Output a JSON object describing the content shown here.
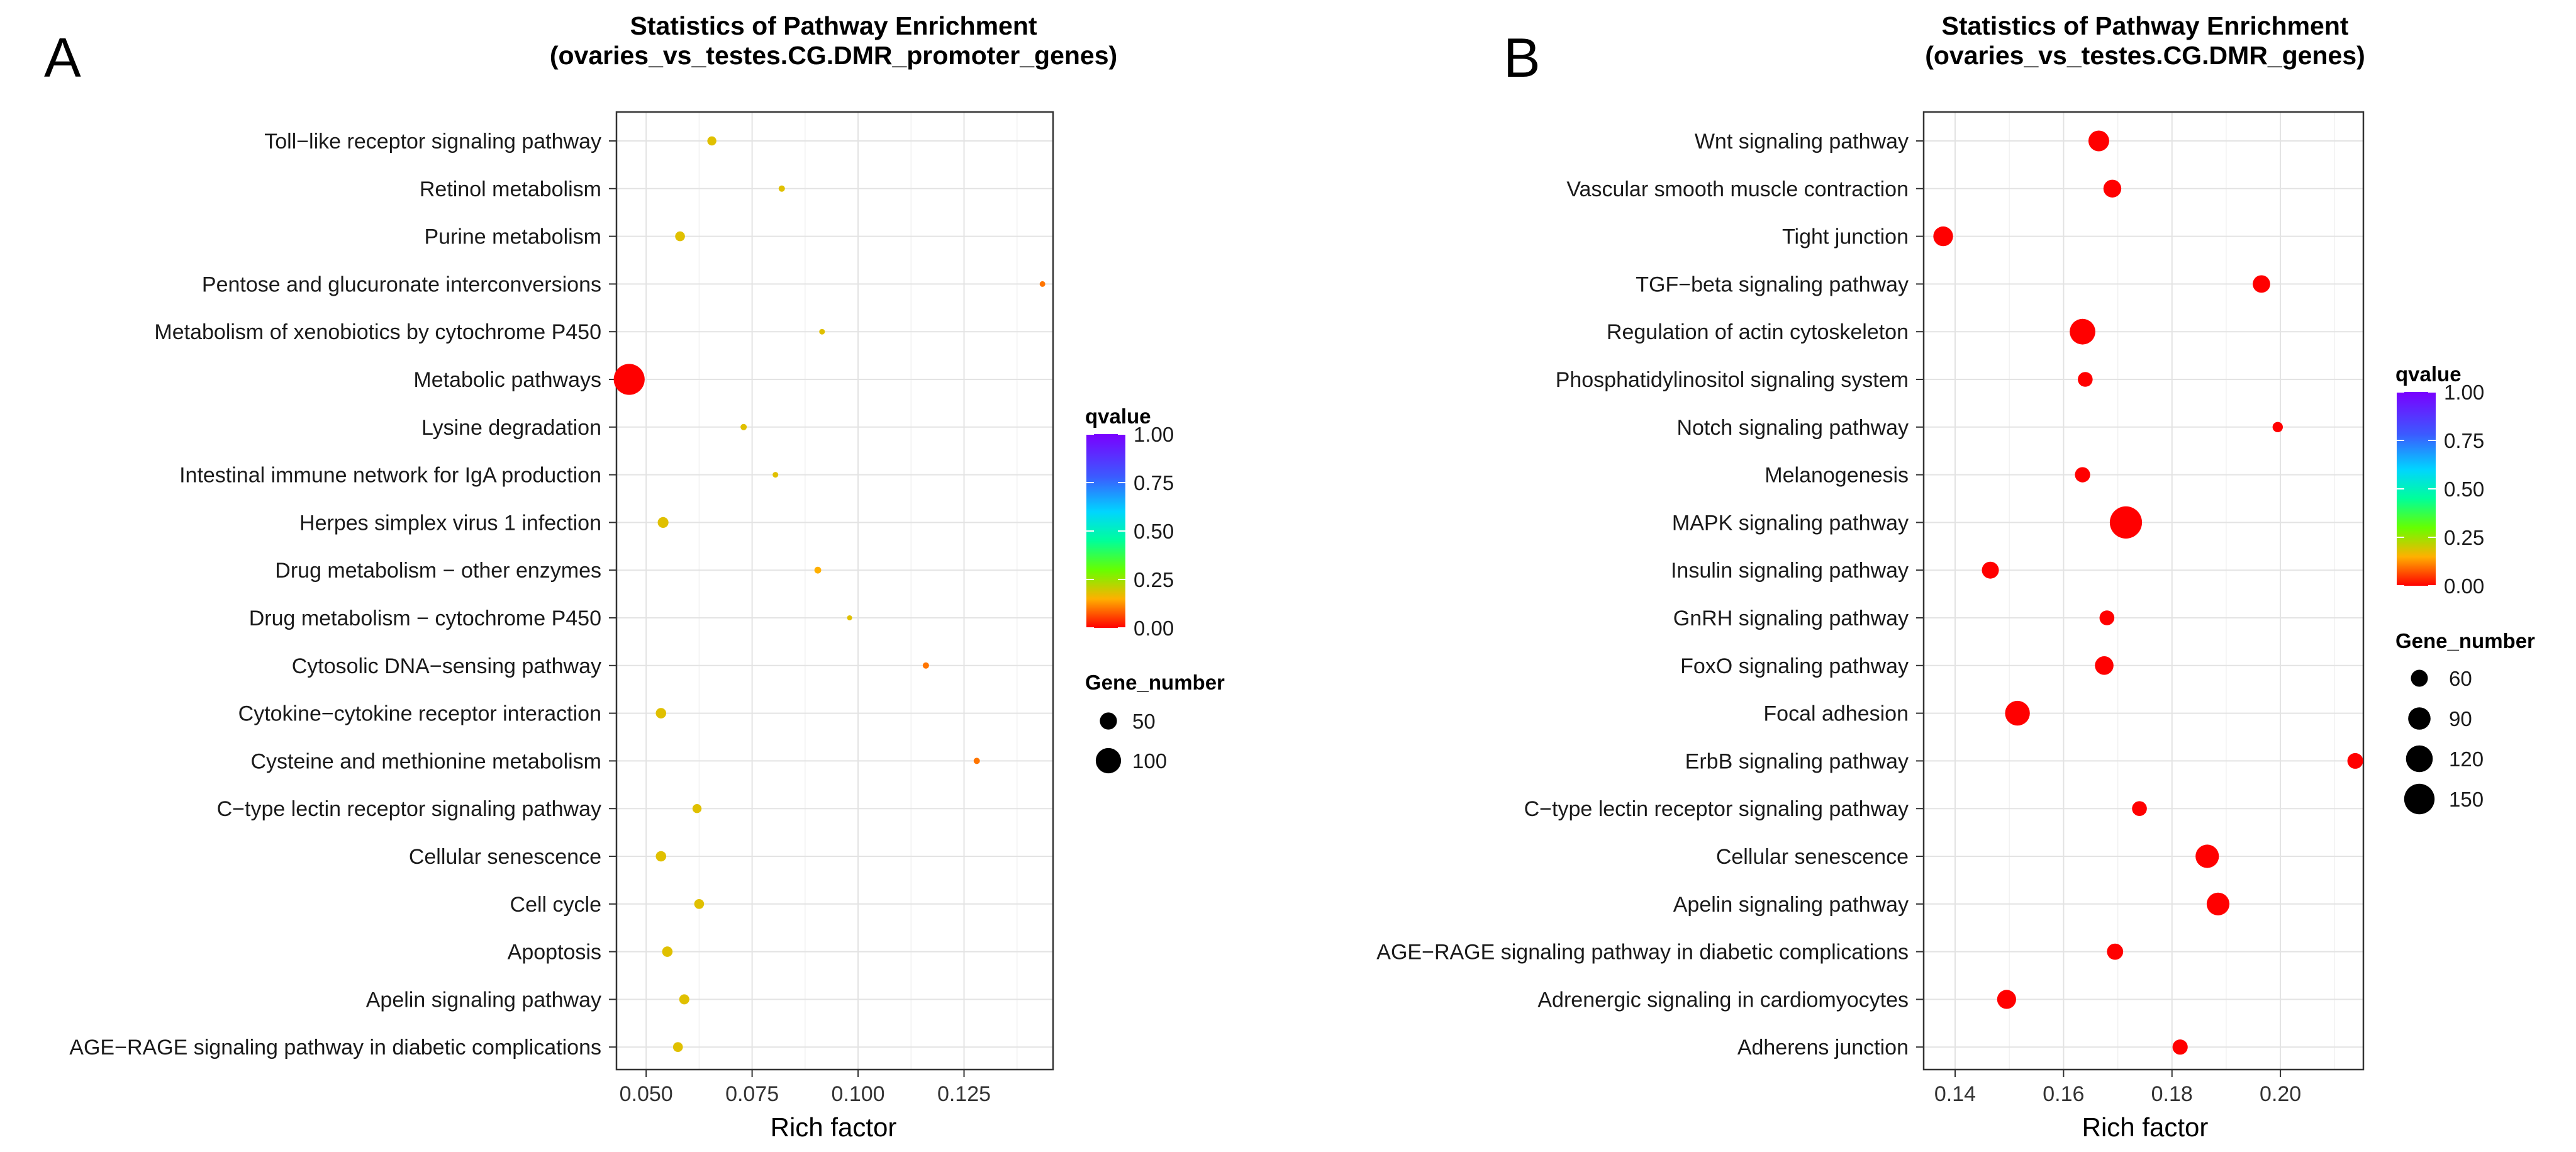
{
  "chart_data": [
    {
      "panel_letter": "A",
      "type": "scatter",
      "title": "Statistics of Pathway Enrichment",
      "subtitle": "(ovaries_vs_testes.CG.DMR_promoter_genes)",
      "xlabel": "Rich factor",
      "ylabel": "",
      "xlim": [
        0.043,
        0.146
      ],
      "xticks": [
        0.05,
        0.075,
        0.1,
        0.125
      ],
      "xtick_labels": [
        "0.050",
        "0.075",
        "0.100",
        "0.125"
      ],
      "grid": true,
      "legend_position": "right",
      "color_legend": {
        "title": "qvalue",
        "ticks": [
          1.0,
          0.75,
          0.5,
          0.25,
          0.0
        ],
        "tick_labels": [
          "1.00",
          "0.75",
          "0.50",
          "0.25",
          "0.00"
        ]
      },
      "size_legend": {
        "title": "Gene_number",
        "values": [
          50,
          100
        ],
        "labels": [
          "50",
          "100"
        ]
      },
      "size_range": [
        12,
        150
      ],
      "categories": [
        "Toll−like receptor signaling pathway",
        "Retinol metabolism",
        "Purine metabolism",
        "Pentose and glucuronate interconversions",
        "Metabolism of xenobiotics by cytochrome P450",
        "Metabolic pathways",
        "Lysine degradation",
        "Intestinal immune network for IgA production",
        "Herpes simplex virus 1 infection",
        "Drug metabolism − other enzymes",
        "Drug metabolism − cytochrome P450",
        "Cytosolic DNA−sensing pathway",
        "Cytokine−cytokine receptor interaction",
        "Cysteine and methionine metabolism",
        "C−type lectin receptor signaling pathway",
        "Cellular senescence",
        "Cell cycle",
        "Apoptosis",
        "Apelin signaling pathway",
        "AGE−RAGE signaling pathway in diabetic complications"
      ],
      "points": [
        {
          "rich_factor": 0.0655,
          "gene_number": 20,
          "qvalue": 0.18
        },
        {
          "rich_factor": 0.082,
          "gene_number": 14,
          "qvalue": 0.18
        },
        {
          "rich_factor": 0.058,
          "gene_number": 22,
          "qvalue": 0.18
        },
        {
          "rich_factor": 0.1435,
          "gene_number": 13,
          "qvalue": 0.1
        },
        {
          "rich_factor": 0.0915,
          "gene_number": 13,
          "qvalue": 0.18
        },
        {
          "rich_factor": 0.046,
          "gene_number": 145,
          "qvalue": 0.0
        },
        {
          "rich_factor": 0.073,
          "gene_number": 14,
          "qvalue": 0.18
        },
        {
          "rich_factor": 0.0805,
          "gene_number": 13,
          "qvalue": 0.18
        },
        {
          "rich_factor": 0.054,
          "gene_number": 25,
          "qvalue": 0.18
        },
        {
          "rich_factor": 0.0905,
          "gene_number": 15,
          "qvalue": 0.15
        },
        {
          "rich_factor": 0.098,
          "gene_number": 12,
          "qvalue": 0.18
        },
        {
          "rich_factor": 0.116,
          "gene_number": 14,
          "qvalue": 0.1
        },
        {
          "rich_factor": 0.0535,
          "gene_number": 24,
          "qvalue": 0.18
        },
        {
          "rich_factor": 0.128,
          "gene_number": 14,
          "qvalue": 0.1
        },
        {
          "rich_factor": 0.062,
          "gene_number": 20,
          "qvalue": 0.18
        },
        {
          "rich_factor": 0.0535,
          "gene_number": 24,
          "qvalue": 0.18
        },
        {
          "rich_factor": 0.0625,
          "gene_number": 22,
          "qvalue": 0.18
        },
        {
          "rich_factor": 0.055,
          "gene_number": 24,
          "qvalue": 0.18
        },
        {
          "rich_factor": 0.059,
          "gene_number": 23,
          "qvalue": 0.18
        },
        {
          "rich_factor": 0.0575,
          "gene_number": 22,
          "qvalue": 0.18
        }
      ]
    },
    {
      "panel_letter": "B",
      "type": "scatter",
      "title": "Statistics of Pathway Enrichment",
      "subtitle": "(ovaries_vs_testes.CG.DMR_genes)",
      "xlabel": "Rich factor",
      "ylabel": "",
      "xlim": [
        0.1342,
        0.2153
      ],
      "xticks": [
        0.14,
        0.16,
        0.18,
        0.2
      ],
      "xtick_labels": [
        "0.14",
        "0.16",
        "0.18",
        "0.20"
      ],
      "grid": true,
      "legend_position": "right",
      "color_legend": {
        "title": "qvalue",
        "ticks": [
          1.0,
          0.75,
          0.5,
          0.25,
          0.0
        ],
        "tick_labels": [
          "1.00",
          "0.75",
          "0.50",
          "0.25",
          "0.00"
        ]
      },
      "size_legend": {
        "title": "Gene_number",
        "values": [
          60,
          90,
          120,
          150
        ],
        "labels": [
          "60",
          "90",
          "120",
          "150"
        ]
      },
      "size_range": [
        30,
        170
      ],
      "categories": [
        "Wnt signaling pathway",
        "Vascular smooth muscle contraction",
        "Tight junction",
        "TGF−beta signaling pathway",
        "Regulation of actin cytoskeleton",
        "Phosphatidylinositol signaling system",
        "Notch signaling pathway",
        "Melanogenesis",
        "MAPK signaling pathway",
        "Insulin signaling pathway",
        "GnRH signaling pathway",
        "FoxO signaling pathway",
        "Focal adhesion",
        "ErbB signaling pathway",
        "C−type lectin receptor signaling pathway",
        "Cellular senescence",
        "Apelin signaling pathway",
        "AGE−RAGE signaling pathway in diabetic complications",
        "Adrenergic signaling in cardiomyocytes",
        "Adherens junction"
      ],
      "points": [
        {
          "rich_factor": 0.1665,
          "gene_number": 80,
          "qvalue": 0.0
        },
        {
          "rich_factor": 0.169,
          "gene_number": 64,
          "qvalue": 0.0
        },
        {
          "rich_factor": 0.1378,
          "gene_number": 74,
          "qvalue": 0.0
        },
        {
          "rich_factor": 0.1965,
          "gene_number": 62,
          "qvalue": 0.0
        },
        {
          "rich_factor": 0.1635,
          "gene_number": 112,
          "qvalue": 0.0
        },
        {
          "rich_factor": 0.164,
          "gene_number": 50,
          "qvalue": 0.0
        },
        {
          "rich_factor": 0.1995,
          "gene_number": 34,
          "qvalue": 0.0
        },
        {
          "rich_factor": 0.1635,
          "gene_number": 52,
          "qvalue": 0.0
        },
        {
          "rich_factor": 0.1715,
          "gene_number": 165,
          "qvalue": 0.0
        },
        {
          "rich_factor": 0.1465,
          "gene_number": 60,
          "qvalue": 0.0
        },
        {
          "rich_factor": 0.168,
          "gene_number": 50,
          "qvalue": 0.0
        },
        {
          "rich_factor": 0.1675,
          "gene_number": 68,
          "qvalue": 0.0
        },
        {
          "rich_factor": 0.1515,
          "gene_number": 106,
          "qvalue": 0.0
        },
        {
          "rich_factor": 0.2138,
          "gene_number": 54,
          "qvalue": 0.0
        },
        {
          "rich_factor": 0.174,
          "gene_number": 50,
          "qvalue": 0.0
        },
        {
          "rich_factor": 0.1865,
          "gene_number": 96,
          "qvalue": 0.0
        },
        {
          "rich_factor": 0.1885,
          "gene_number": 92,
          "qvalue": 0.0
        },
        {
          "rich_factor": 0.1695,
          "gene_number": 56,
          "qvalue": 0.0
        },
        {
          "rich_factor": 0.1495,
          "gene_number": 70,
          "qvalue": 0.0
        },
        {
          "rich_factor": 0.1815,
          "gene_number": 52,
          "qvalue": 0.0
        }
      ]
    }
  ]
}
